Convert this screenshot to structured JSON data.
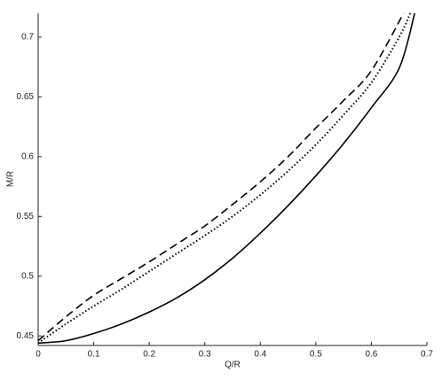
{
  "chart_data": {
    "type": "line",
    "x_label": "Q/R",
    "y_label": "M/R",
    "xlim": [
      0,
      0.7
    ],
    "ylim": [
      0.442,
      0.72
    ],
    "xticks": [
      0,
      0.1,
      0.2,
      0.3,
      0.4,
      0.5,
      0.6,
      0.7
    ],
    "yticks": [
      0.45,
      0.5,
      0.55,
      0.6,
      0.65,
      0.7
    ],
    "grid": false,
    "series": [
      {
        "color": "#000000",
        "dash": "solid",
        "x": [
          0,
          0.05,
          0.1,
          0.15,
          0.2,
          0.25,
          0.3,
          0.35,
          0.4,
          0.45,
          0.5,
          0.55,
          0.6,
          0.65,
          0.678
        ],
        "values": [
          0.444,
          0.446,
          0.452,
          0.46,
          0.47,
          0.482,
          0.497,
          0.515,
          0.536,
          0.559,
          0.584,
          0.611,
          0.641,
          0.674,
          0.72
        ]
      },
      {
        "color": "#000000",
        "dash": "dotted",
        "x": [
          0,
          0.05,
          0.1,
          0.15,
          0.2,
          0.25,
          0.3,
          0.35,
          0.4,
          0.45,
          0.5,
          0.55,
          0.6,
          0.65,
          0.67
        ],
        "values": [
          0.444,
          0.46,
          0.475,
          0.489,
          0.504,
          0.519,
          0.534,
          0.55,
          0.568,
          0.588,
          0.61,
          0.635,
          0.662,
          0.7,
          0.72
        ]
      },
      {
        "color": "#000000",
        "dash": "dashed",
        "x": [
          0,
          0.05,
          0.1,
          0.15,
          0.2,
          0.25,
          0.3,
          0.35,
          0.4,
          0.45,
          0.5,
          0.55,
          0.6,
          0.658
        ],
        "values": [
          0.446,
          0.466,
          0.484,
          0.498,
          0.512,
          0.527,
          0.542,
          0.56,
          0.579,
          0.6,
          0.624,
          0.647,
          0.672,
          0.72
        ]
      }
    ]
  }
}
